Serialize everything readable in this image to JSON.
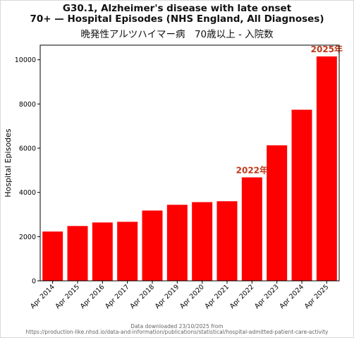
{
  "title_line1": "G30.1, Alzheimer's disease with late onset",
  "title_line2": "70+ — Hospital Episodes (NHS England, All Diagnoses)",
  "subtitle": "晩発性アルツハイマー病　70歳以上 - 入院数",
  "footer_line1": "Data downloaded 23/10/2025 from",
  "footer_line2": "https://production-like.nhsd.io/data-and-information/publications/statistical/hospital-admitted-patient-care-activity",
  "chart_data": {
    "type": "bar",
    "categories": [
      "Apr 2014",
      "Apr 2015",
      "Apr 2016",
      "Apr 2017",
      "Apr 2018",
      "Apr 2019",
      "Apr 2020",
      "Apr 2021",
      "Apr 2022",
      "Apr 2023",
      "Apr 2024",
      "Apr 2025"
    ],
    "values": [
      2230,
      2480,
      2640,
      2670,
      3180,
      3440,
      3560,
      3600,
      4680,
      6130,
      7740,
      10150
    ],
    "ylabel": "Hospital Episodes",
    "ylim": [
      0,
      10660
    ],
    "yticks": [
      0,
      2000,
      4000,
      6000,
      8000,
      10000
    ],
    "bar_color": "#ff0000",
    "annotation_color": "#c0391b",
    "annotations": [
      {
        "category": "Apr 2022",
        "text": "2022年"
      },
      {
        "category": "Apr 2025",
        "text": "2025年"
      }
    ],
    "grid": false
  }
}
